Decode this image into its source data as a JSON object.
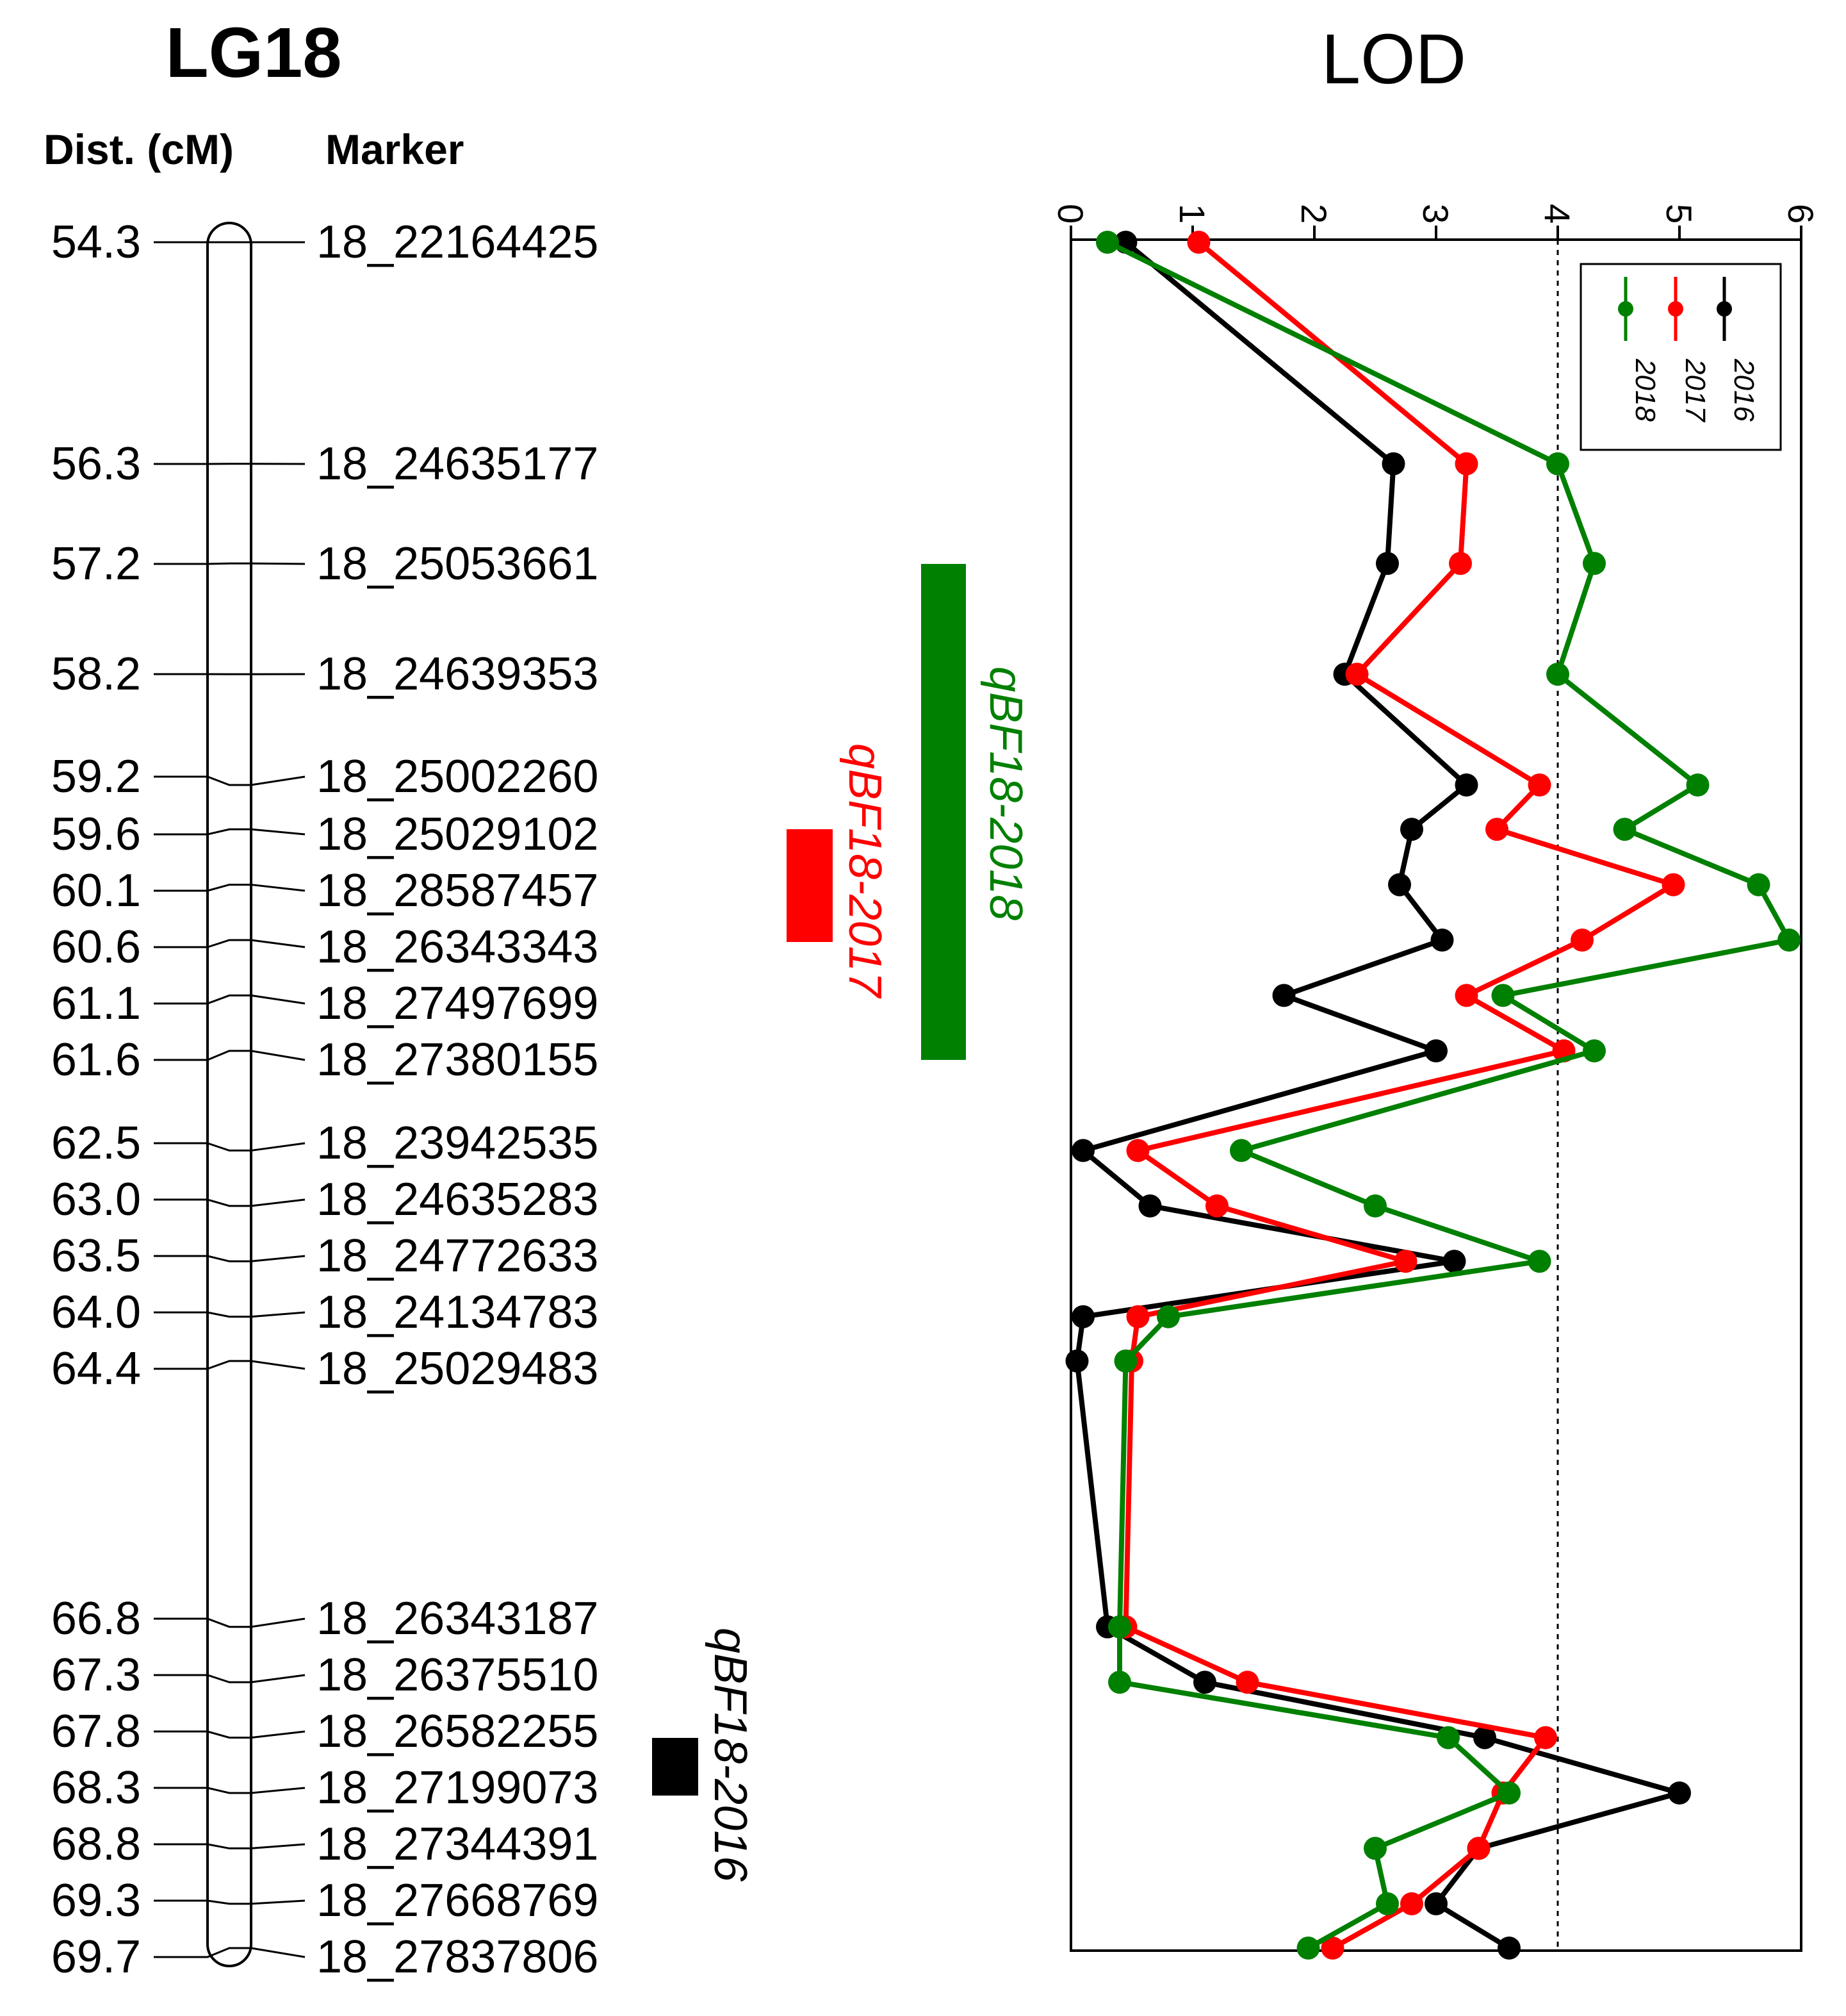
{
  "linkage_map": {
    "title": "LG18",
    "dist_header": "Dist. (cM)",
    "marker_header": "Marker",
    "markers": [
      {
        "dist": "54.3",
        "name": "18_22164425"
      },
      {
        "dist": "56.3",
        "name": "18_24635177"
      },
      {
        "dist": "57.2",
        "name": "18_25053661"
      },
      {
        "dist": "58.2",
        "name": "18_24639353"
      },
      {
        "dist": "59.2",
        "name": "18_25002260"
      },
      {
        "dist": "59.6",
        "name": "18_25029102"
      },
      {
        "dist": "60.1",
        "name": "18_28587457"
      },
      {
        "dist": "60.6",
        "name": "18_26343343"
      },
      {
        "dist": "61.1",
        "name": "18_27497699"
      },
      {
        "dist": "61.6",
        "name": "18_27380155"
      },
      {
        "dist": "62.5",
        "name": "18_23942535"
      },
      {
        "dist": "63.0",
        "name": "18_24635283"
      },
      {
        "dist": "63.5",
        "name": "18_24772633"
      },
      {
        "dist": "64.0",
        "name": "18_24134783"
      },
      {
        "dist": "64.4",
        "name": "18_25029483"
      },
      {
        "dist": "66.8",
        "name": "18_26343187"
      },
      {
        "dist": "67.3",
        "name": "18_26375510"
      },
      {
        "dist": "67.8",
        "name": "18_26582255"
      },
      {
        "dist": "68.3",
        "name": "18_27199073"
      },
      {
        "dist": "68.8",
        "name": "18_27344391"
      },
      {
        "dist": "69.3",
        "name": "18_27668769"
      },
      {
        "dist": "69.7",
        "name": "18_27837806"
      }
    ],
    "qtls": [
      {
        "label": "qBF18-2018",
        "color": "#008000",
        "from": "57.2",
        "to": "61.6"
      },
      {
        "label": "qBF18-2017",
        "color": "#ff0000",
        "from": "59.6",
        "to": "60.6"
      },
      {
        "label": "qBF18-2016",
        "color": "#000000",
        "from": "67.8",
        "to": "68.3"
      }
    ]
  },
  "chart_data": {
    "type": "line",
    "title": "LOD",
    "xlabel": "",
    "ylabel": "",
    "orientation": "LOD axis horizontal on top; marker position along vertical axis",
    "lod_ticks": [
      "0",
      "1",
      "2",
      "3",
      "4",
      "5",
      "6"
    ],
    "lod_range": [
      0,
      6
    ],
    "threshold": 4.0,
    "legend_position": "top-right",
    "grid": false,
    "positions_cM": [
      54.3,
      56.3,
      57.2,
      58.2,
      59.2,
      59.6,
      60.1,
      60.6,
      61.1,
      61.6,
      62.5,
      63.0,
      63.5,
      64.0,
      64.4,
      66.8,
      67.3,
      67.8,
      68.3,
      68.8,
      69.3,
      69.7
    ],
    "series": [
      {
        "name": "2016",
        "color": "#000000",
        "values": [
          0.45,
          2.65,
          2.6,
          2.25,
          3.25,
          2.8,
          2.7,
          3.05,
          1.75,
          3.0,
          0.1,
          0.65,
          3.15,
          0.1,
          0.05,
          0.3,
          1.1,
          3.4,
          5.0,
          3.35,
          3.0,
          3.6
        ]
      },
      {
        "name": "2017",
        "color": "#ff0000",
        "values": [
          1.05,
          3.25,
          3.2,
          2.35,
          3.85,
          3.5,
          4.95,
          4.2,
          3.25,
          4.05,
          0.55,
          1.2,
          2.75,
          0.55,
          0.5,
          0.45,
          1.45,
          3.9,
          3.55,
          3.35,
          2.8,
          2.15
        ]
      },
      {
        "name": "2018",
        "color": "#008000",
        "values": [
          0.3,
          4.0,
          4.3,
          4.0,
          5.15,
          4.55,
          5.65,
          5.9,
          3.55,
          4.3,
          1.4,
          2.5,
          3.85,
          0.8,
          0.45,
          0.4,
          0.4,
          3.1,
          3.6,
          2.5,
          2.6,
          1.95
        ]
      }
    ]
  }
}
